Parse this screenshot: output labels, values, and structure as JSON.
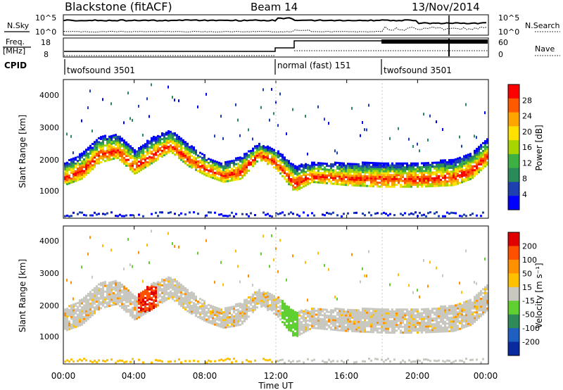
{
  "header": {
    "station": "Blackstone (fitACF)",
    "beam": "Beam 14",
    "date": "13/Nov/2014"
  },
  "top_panels": {
    "nsky_label": "N.Sky",
    "nsearch_label": "N.Search",
    "freq_label_1": "Freq.",
    "freq_label_2": "[MHz]",
    "nave_label": "Nave",
    "cpid_label": "CPID",
    "noise_left_ticks": [
      "10^5",
      "10^0"
    ],
    "noise_right_ticks": [
      "10^5",
      "10^0"
    ],
    "freq_left_ticks": [
      "18",
      "8"
    ],
    "nave_right_ticks": [
      "60",
      "0"
    ],
    "cpid_segments": [
      {
        "name": "twofsound 3501",
        "start_hour": 0
      },
      {
        "name": "normal (fast) 151",
        "start_hour": 12.0
      },
      {
        "name": "twofsound 3501",
        "start_hour": 18.0
      }
    ]
  },
  "x_axis": {
    "label": "Time UT",
    "ticks": [
      "00:00",
      "04:00",
      "08:00",
      "12:00",
      "16:00",
      "20:00",
      "00:00"
    ]
  },
  "power_panel": {
    "ylabel": "Slant Range [km]",
    "yticks": [
      "4000",
      "3000",
      "2000",
      "1000"
    ],
    "colorbar_label": "Power [dB]",
    "colorbar_ticks": [
      "28",
      "24",
      "20",
      "16",
      "12",
      "8",
      "4"
    ],
    "colors": [
      "#0000ff",
      "#1e3fb0",
      "#2a8a5a",
      "#3cb043",
      "#a8d500",
      "#ffe000",
      "#ffa500",
      "#ff5a00",
      "#ff0000"
    ]
  },
  "velocity_panel": {
    "ylabel": "Slant Range [km]",
    "yticks": [
      "4000",
      "3000",
      "2000",
      "1000"
    ],
    "colorbar_label": "Velocity [m s⁻¹]",
    "colorbar_ticks": [
      "200",
      "100",
      "50",
      "15",
      "-15",
      "-50",
      "-100",
      "-200"
    ],
    "colors": [
      "#0a2aa0",
      "#1f5fbf",
      "#2e8b57",
      "#5fd030",
      "#c8c8c0",
      "#ffc000",
      "#ff9000",
      "#ff5000",
      "#e00000"
    ]
  },
  "chart_data": {
    "type": "heatmap",
    "title": "Blackstone (fitACF)  Beam 14  13/Nov/2014",
    "xlabel": "Time UT",
    "ylabel": "Slant Range [km]",
    "xlim": [
      0,
      24
    ],
    "ylim": [
      200,
      4500
    ],
    "ground_scatter_range_km": 250,
    "main_band": {
      "time_hours": [
        0,
        1,
        2,
        3,
        4,
        5,
        6,
        7,
        8,
        9,
        10,
        11,
        12,
        13,
        14,
        16,
        18,
        20,
        22,
        23,
        24
      ],
      "range_low_km": [
        1200,
        1400,
        1900,
        2050,
        1550,
        1900,
        2250,
        1800,
        1500,
        1300,
        1400,
        2000,
        1700,
        1000,
        1300,
        1200,
        1150,
        1150,
        1200,
        1400,
        1900
      ],
      "range_high_km": [
        1900,
        2200,
        2700,
        2800,
        2300,
        2700,
        2900,
        2500,
        2100,
        1900,
        2100,
        2500,
        2300,
        1800,
        1900,
        1900,
        1900,
        1900,
        2000,
        2200,
        2700
      ]
    },
    "series": [
      {
        "name": "Power [dB]",
        "range_db": [
          0,
          30
        ]
      },
      {
        "name": "Velocity [m s-1]",
        "range": [
          -200,
          200
        ]
      }
    ]
  }
}
